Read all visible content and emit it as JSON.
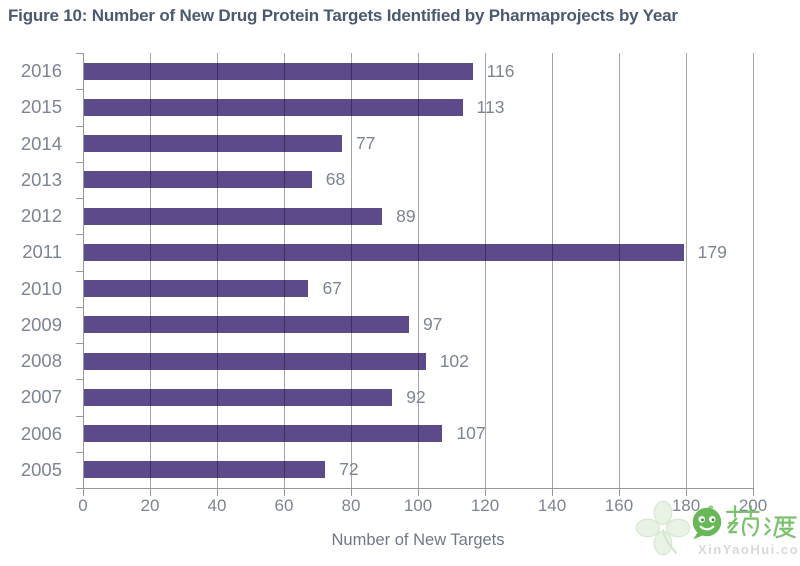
{
  "figure": {
    "title": "Figure 10: Number of New Drug Protein Targets Identified by Pharmaprojects by Year"
  },
  "chart_data": {
    "type": "bar",
    "orientation": "horizontal",
    "title": "Figure 10: Number of New Drug Protein Targets Identified by Pharmaprojects by Year",
    "categories": [
      "2016",
      "2015",
      "2014",
      "2013",
      "2012",
      "2011",
      "2010",
      "2009",
      "2008",
      "2007",
      "2006",
      "2005"
    ],
    "values": [
      116,
      113,
      77,
      68,
      89,
      179,
      67,
      97,
      102,
      92,
      107,
      72
    ],
    "xlabel": "Number of New Targets",
    "ylabel": "",
    "xlim": [
      0,
      200
    ],
    "xticks": [
      0,
      20,
      40,
      60,
      80,
      100,
      120,
      140,
      160,
      180,
      200
    ],
    "grid": true,
    "legend": false,
    "value_labels_shown": true,
    "colors": {
      "bar": "#5D4A8B",
      "text_labels": "#7D8493",
      "gridline": "#A4A6AA",
      "axis": "#96989D",
      "title": "#4C5970",
      "axis_title": "#707888"
    }
  },
  "watermark": {
    "brand_text": "药渡",
    "site_text": "XinYaoHui.com",
    "brand_color": "#5CB24A"
  }
}
